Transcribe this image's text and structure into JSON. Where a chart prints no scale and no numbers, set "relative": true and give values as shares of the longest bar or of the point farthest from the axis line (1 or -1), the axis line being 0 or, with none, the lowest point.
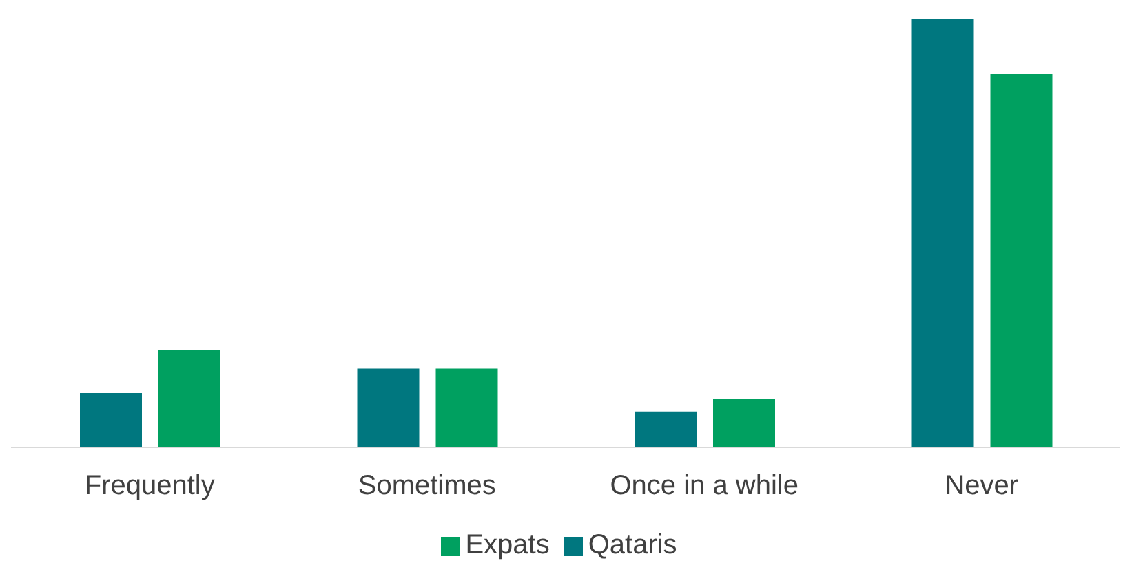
{
  "chart_data": {
    "type": "bar",
    "relative": true,
    "categories": [
      "Frequently",
      "Sometimes",
      "Once in a while",
      "Never"
    ],
    "series": [
      {
        "name": "Qataris",
        "color": "#00777f",
        "values": [
          0.127,
          0.184,
          0.084,
          1
        ]
      },
      {
        "name": "Expats",
        "color": "#00a060",
        "values": [
          0.227,
          0.184,
          0.114,
          0.873
        ]
      }
    ],
    "legend": "bottom",
    "grid": false
  }
}
